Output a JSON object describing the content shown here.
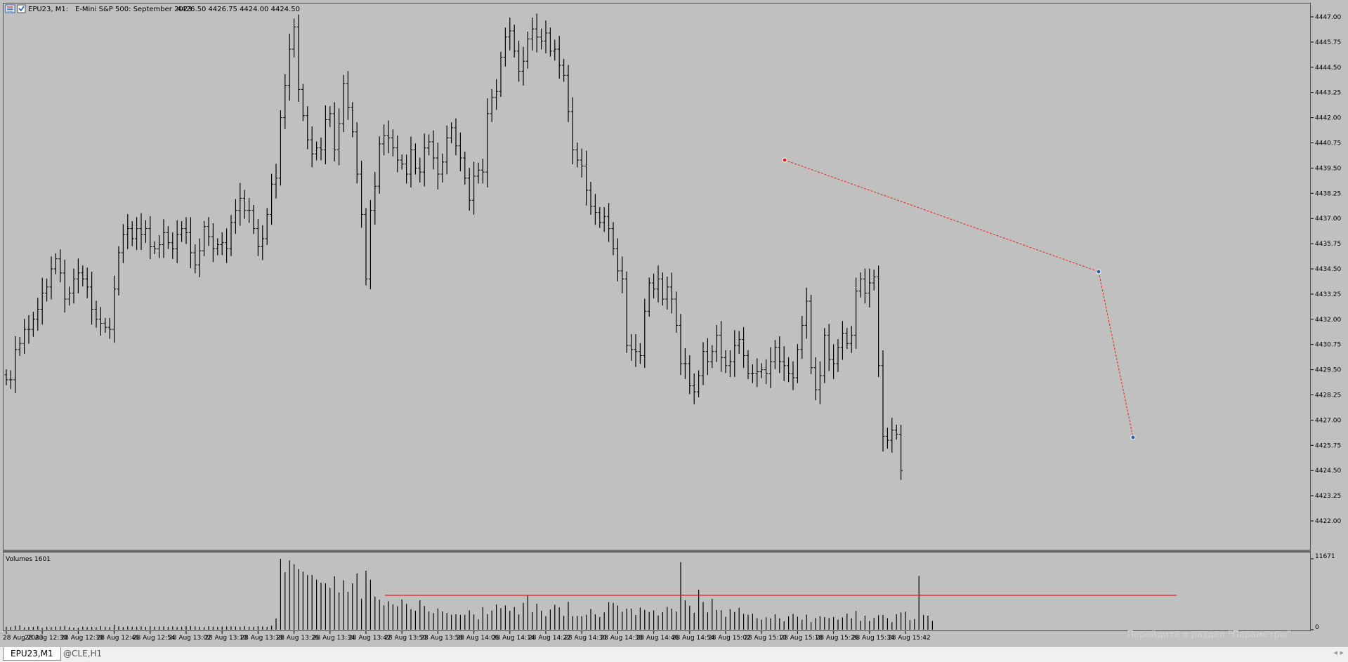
{
  "header": {
    "symbol": "EPU23, M1:",
    "description": "E-Mini S&P 500: September 2023",
    "ohlc": "4426.50 4426.75 4424.00 4424.50"
  },
  "volume_panel": {
    "label": "Volumes 1601",
    "max_label": "11671",
    "min_label": "0"
  },
  "tabs": [
    {
      "label": "EPU23,M1",
      "active": true
    },
    {
      "label": "@CLE,H1",
      "active": false
    }
  ],
  "watermark": "Перейдите в раздел \"Параметры\"",
  "colors": {
    "background": "#c0c0c0",
    "bars": "#000000",
    "trendline": "#e8211a",
    "grid_separator": "#606060"
  },
  "chart_data": [
    {
      "type": "ohlc",
      "title": "E-Mini S&P 500: September 2023",
      "ylim": [
        4421.0,
        4447.25
      ],
      "y_ticks": [
        "4447.00",
        "4445.75",
        "4444.50",
        "4443.25",
        "4442.00",
        "4440.75",
        "4439.50",
        "4438.25",
        "4437.00",
        "4435.75",
        "4434.50",
        "4433.25",
        "4432.00",
        "4430.75",
        "4429.50",
        "4428.25",
        "4427.00",
        "4425.75",
        "4424.50",
        "4423.25",
        "4422.00"
      ],
      "x_ticks": [
        "28 Aug 2023",
        "28 Aug 12:30",
        "28 Aug 12:38",
        "28 Aug 12:46",
        "28 Aug 12:54",
        "28 Aug 13:02",
        "28 Aug 13:10",
        "28 Aug 13:18",
        "28 Aug 13:26",
        "28 Aug 13:34",
        "28 Aug 13:42",
        "28 Aug 13:50",
        "28 Aug 13:58",
        "28 Aug 14:06",
        "28 Aug 14:14",
        "28 Aug 14:22",
        "28 Aug 14:30",
        "28 Aug 14:38",
        "28 Aug 14:46",
        "28 Aug 14:54",
        "28 Aug 15:02",
        "28 Aug 15:10",
        "28 Aug 15:18",
        "28 Aug 15:26",
        "28 Aug 15:34",
        "28 Aug 15:42"
      ],
      "x_tick_bar_index": [
        0,
        8,
        16,
        24,
        32,
        40,
        48,
        56,
        64,
        72,
        80,
        88,
        96,
        104,
        112,
        120,
        128,
        136,
        144,
        152,
        160,
        168,
        176,
        184,
        192,
        200
      ],
      "closes": [
        4429.0,
        4429.0,
        4430.5,
        4430.8,
        4431.5,
        4431.5,
        4432.0,
        4432.5,
        4433.3,
        4433.6,
        4434.5,
        4435.0,
        4434.3,
        4433.0,
        4433.3,
        4434.0,
        4434.3,
        4434.0,
        4433.6,
        4432.5,
        4432.0,
        4431.8,
        4431.6,
        4431.5,
        4433.5,
        4435.3,
        4436.2,
        4436.5,
        4436.0,
        4436.5,
        4436.2,
        4436.5,
        4435.6,
        4435.5,
        4435.7,
        4436.3,
        4435.8,
        4435.5,
        4436.2,
        4436.5,
        4436.3,
        4435.3,
        4434.7,
        4435.4,
        4436.6,
        4436.1,
        4435.5,
        4435.7,
        4435.8,
        4435.5,
        4436.8,
        4437.4,
        4438.0,
        4437.4,
        4437.4,
        4436.5,
        4435.6,
        4436.0,
        4437.2,
        4438.7,
        4439.0,
        4442.0,
        4443.6,
        4445.4,
        4446.5,
        4443.4,
        4442.1,
        4440.9,
        4440.2,
        4440.5,
        4440.4,
        4441.9,
        4442.2,
        4440.4,
        4441.7,
        4443.7,
        4442.5,
        4441.3,
        4439.2,
        4437.2,
        4434.0,
        4437.4,
        4438.6,
        4440.7,
        4441.1,
        4441.0,
        4440.5,
        4439.9,
        4439.7,
        4439.2,
        4440.4,
        4439.5,
        4439.3,
        4440.5,
        4440.8,
        4440.0,
        4439.2,
        4439.8,
        4441.0,
        4441.5,
        4440.6,
        4440.0,
        4439.0,
        4437.9,
        4439.1,
        4439.4,
        4439.3,
        4442.2,
        4443.0,
        4443.3,
        4445.0,
        4446.0,
        4446.3,
        4445.3,
        4444.3,
        4444.8,
        4445.9,
        4446.4,
        4446.0,
        4445.8,
        4446.2,
        4445.3,
        4445.4,
        4444.6,
        4444.1,
        4442.3,
        4440.4,
        4439.9,
        4439.6,
        4438.4,
        4437.6,
        4437.3,
        4436.8,
        4437.1,
        4436.5,
        4435.5,
        4434.4,
        4434.0,
        4430.7,
        4430.5,
        4430.4,
        4430.2,
        4432.4,
        4433.8,
        4433.5,
        4434.0,
        4433.0,
        4433.6,
        4433.0,
        4431.7,
        4429.8,
        4429.8,
        4428.7,
        4428.4,
        4429.2,
        4430.4,
        4429.9,
        4430.4,
        4431.2,
        4430.1,
        4429.7,
        4429.9,
        4430.7,
        4431.0,
        4430.2,
        4429.3,
        4429.3,
        4429.4,
        4429.5,
        4429.3,
        4429.9,
        4430.6,
        4429.9,
        4429.7,
        4429.3,
        4429.1,
        4430.5,
        4431.7,
        4432.9,
        4429.6,
        4428.5,
        4429.2,
        4431.2,
        4430.0,
        4429.8,
        4430.6,
        4431.3,
        4430.8,
        4431.2,
        4433.4,
        4434.0,
        4433.3,
        4433.8,
        4434.1,
        4429.7,
        4426.2,
        4426.0,
        4426.5,
        4426.3,
        4424.5
      ],
      "volumes": [
        480,
        420,
        650,
        710,
        380,
        450,
        470,
        560,
        300,
        470,
        420,
        510,
        530,
        620,
        420,
        340,
        300,
        500,
        410,
        460,
        390,
        600,
        470,
        440,
        800,
        530,
        440,
        540,
        480,
        470,
        550,
        470,
        580,
        500,
        520,
        530,
        470,
        540,
        420,
        470,
        580,
        600,
        540,
        480,
        440,
        560,
        500,
        450,
        510,
        520,
        540,
        510,
        490,
        600,
        500,
        470,
        580,
        520,
        460,
        660,
        1840,
        11671,
        9460,
        11400,
        10780,
        9980,
        9560,
        9000,
        9010,
        8250,
        7750,
        7640,
        6900,
        8780,
        6140,
        8140,
        6240,
        7650,
        9280,
        5100,
        9710,
        8220,
        5460,
        4930,
        4010,
        4690,
        4190,
        3860,
        4960,
        4240,
        3380,
        3120,
        4860,
        3920,
        3000,
        2730,
        3510,
        3020,
        2770,
        2470,
        2550,
        2450,
        2460,
        3170,
        2520,
        1710,
        3720,
        2560,
        3160,
        4150,
        3560,
        4000,
        3120,
        3720,
        2520,
        4420,
        5610,
        2900,
        4300,
        3130,
        2240,
        3320,
        4100,
        3670,
        2270,
        4580,
        2230,
        2260,
        2210,
        2470,
        3410,
        2540,
        2110,
        2850,
        4530,
        4410,
        3990,
        2950,
        3470,
        3470,
        2420,
        3650,
        3270,
        2930,
        3170,
        2340,
        2890,
        3760,
        3460,
        2970,
        11130,
        4840,
        3960,
        2790,
        6590,
        4550,
        2860,
        5100,
        3260,
        3200,
        2120,
        3380,
        2930,
        3600,
        2610,
        2480,
        2620,
        1910,
        1650,
        2030,
        1860,
        2550,
        1870,
        1380,
        2210,
        2590,
        2150,
        1640,
        2490,
        1270,
        1930,
        2210,
        2090,
        1930,
        2100,
        1660,
        2030,
        2640,
        1890,
        3080,
        1460,
        2310,
        1430,
        1940,
        2380,
        2440,
        1910,
        1240,
        2560,
        2840,
        2960,
        1590,
        1760,
        8850,
        2440,
        2310,
        1450
      ]
    }
  ]
}
